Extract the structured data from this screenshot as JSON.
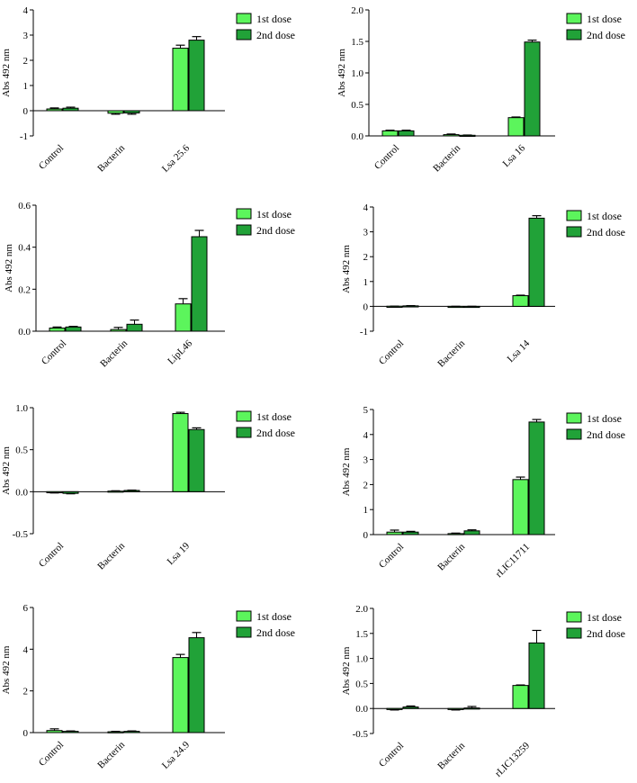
{
  "colors": {
    "dose1": "#5cf55c",
    "dose2": "#21a238",
    "axis": "#000000"
  },
  "chart_data": [
    {
      "type": "bar",
      "antigen": "Lsa 25.6",
      "ylabel": "Abs 492 nm",
      "ylim": [
        -1,
        4
      ],
      "yticks": [
        -1,
        0,
        1,
        2,
        3,
        4
      ],
      "yticklabels": [
        "-1",
        "0",
        "1",
        "2",
        "3",
        "4"
      ],
      "categories": [
        "Control",
        "Bacterin",
        "Lsa 25.6"
      ],
      "series": [
        {
          "name": "1st dose",
          "values": [
            0.07,
            -0.1,
            2.48
          ],
          "errors": [
            0.04,
            0.04,
            0.12
          ]
        },
        {
          "name": "2nd dose",
          "values": [
            0.1,
            -0.09,
            2.8
          ],
          "errors": [
            0.04,
            0.05,
            0.14
          ]
        }
      ]
    },
    {
      "type": "bar",
      "antigen": "Lsa 16",
      "ylabel": "Abs 492 nm",
      "ylim": [
        0,
        2
      ],
      "yticks": [
        0,
        0.5,
        1,
        1.5,
        2
      ],
      "yticklabels": [
        "0.0",
        "0.5",
        "1.0",
        "1.5",
        "2.0"
      ],
      "categories": [
        "Control",
        "Bacterin",
        "Lsa 16"
      ],
      "series": [
        {
          "name": "1st dose",
          "values": [
            0.08,
            0.02,
            0.29
          ],
          "errors": [
            0.01,
            0.01,
            0.01
          ]
        },
        {
          "name": "2nd dose",
          "values": [
            0.08,
            0.01,
            1.49
          ],
          "errors": [
            0.01,
            0.004,
            0.03
          ]
        }
      ]
    },
    {
      "type": "bar",
      "antigen": "LipL46",
      "ylabel": "Abs 492 nm",
      "ylim": [
        0,
        0.6
      ],
      "yticks": [
        0,
        0.2,
        0.4,
        0.6
      ],
      "yticklabels": [
        "0.0",
        "0.2",
        "0.4",
        "0.6"
      ],
      "categories": [
        "Control",
        "Bacterin",
        "LipL46"
      ],
      "series": [
        {
          "name": "1st dose",
          "values": [
            0.015,
            0.008,
            0.13
          ],
          "errors": [
            0.005,
            0.01,
            0.025
          ]
        },
        {
          "name": "2nd dose",
          "values": [
            0.02,
            0.033,
            0.45
          ],
          "errors": [
            0.003,
            0.02,
            0.03
          ]
        }
      ]
    },
    {
      "type": "bar",
      "antigen": "Lsa 14",
      "ylabel": "Abs 492 nm",
      "ylim": [
        -1,
        4
      ],
      "yticks": [
        -1,
        0,
        1,
        2,
        3,
        4
      ],
      "yticklabels": [
        "-1",
        "0",
        "1",
        "2",
        "3",
        "4"
      ],
      "categories": [
        "Control",
        "Bacterin",
        "Lsa 14"
      ],
      "series": [
        {
          "name": "1st dose",
          "values": [
            0.005,
            0.0,
            0.43
          ],
          "errors": [
            0.005,
            0.003,
            0.02
          ]
        },
        {
          "name": "2nd dose",
          "values": [
            0.02,
            0.0,
            3.55
          ],
          "errors": [
            0.01,
            0.003,
            0.1
          ]
        }
      ]
    },
    {
      "type": "bar",
      "antigen": "Lsa 19",
      "ylabel": "Abs 492 nm",
      "ylim": [
        -0.5,
        1
      ],
      "yticks": [
        -0.5,
        0,
        0.5,
        1
      ],
      "yticklabels": [
        "-0.5",
        "0.0",
        "0.5",
        "1.0"
      ],
      "categories": [
        "Control",
        "Bacterin",
        "Lsa 19"
      ],
      "series": [
        {
          "name": "1st dose",
          "values": [
            -0.01,
            0.007,
            0.93
          ],
          "errors": [
            0.005,
            0.004,
            0.015
          ]
        },
        {
          "name": "2nd dose",
          "values": [
            -0.02,
            0.015,
            0.74
          ],
          "errors": [
            0.005,
            0.004,
            0.02
          ]
        }
      ]
    },
    {
      "type": "bar",
      "antigen": "rLIC11711",
      "ylabel": "Abs 492 nm",
      "ylim": [
        0,
        5
      ],
      "yticks": [
        0,
        1,
        2,
        3,
        4,
        5
      ],
      "yticklabels": [
        "0",
        "1",
        "2",
        "3",
        "4",
        "5"
      ],
      "categories": [
        "Control",
        "Bacterin",
        "rLIC11711"
      ],
      "series": [
        {
          "name": "1st dose",
          "values": [
            0.1,
            0.04,
            2.2
          ],
          "errors": [
            0.08,
            0.02,
            0.1
          ]
        },
        {
          "name": "2nd dose",
          "values": [
            0.1,
            0.15,
            4.5
          ],
          "errors": [
            0.03,
            0.04,
            0.1
          ]
        }
      ]
    },
    {
      "type": "bar",
      "antigen": "Lsa 24.9",
      "ylabel": "Abs 492 nm",
      "ylim": [
        0,
        6
      ],
      "yticks": [
        0,
        2,
        4,
        6
      ],
      "yticklabels": [
        "0",
        "2",
        "4",
        "6"
      ],
      "categories": [
        "Control",
        "Bacterin",
        "Lsa 24.9"
      ],
      "series": [
        {
          "name": "1st dose",
          "values": [
            0.1,
            0.04,
            3.6
          ],
          "errors": [
            0.08,
            0.02,
            0.15
          ]
        },
        {
          "name": "2nd dose",
          "values": [
            0.06,
            0.06,
            4.55
          ],
          "errors": [
            0.02,
            0.02,
            0.25
          ]
        }
      ]
    },
    {
      "type": "bar",
      "antigen": "rLIC13259",
      "ylabel": "Abs 492 nm",
      "ylim": [
        -0.5,
        2
      ],
      "yticks": [
        -0.5,
        0,
        0.5,
        1,
        1.5,
        2
      ],
      "yticklabels": [
        "-0.5",
        "0.0",
        "0.5",
        "1.0",
        "1.5",
        "2.0"
      ],
      "categories": [
        "Control",
        "Bacterin",
        "rLIC13259"
      ],
      "series": [
        {
          "name": "1st dose",
          "values": [
            -0.02,
            -0.02,
            0.46
          ],
          "errors": [
            0.01,
            0.01,
            0.01
          ]
        },
        {
          "name": "2nd dose",
          "values": [
            0.03,
            0.01,
            1.31
          ],
          "errors": [
            0.02,
            0.03,
            0.25
          ]
        }
      ]
    }
  ]
}
